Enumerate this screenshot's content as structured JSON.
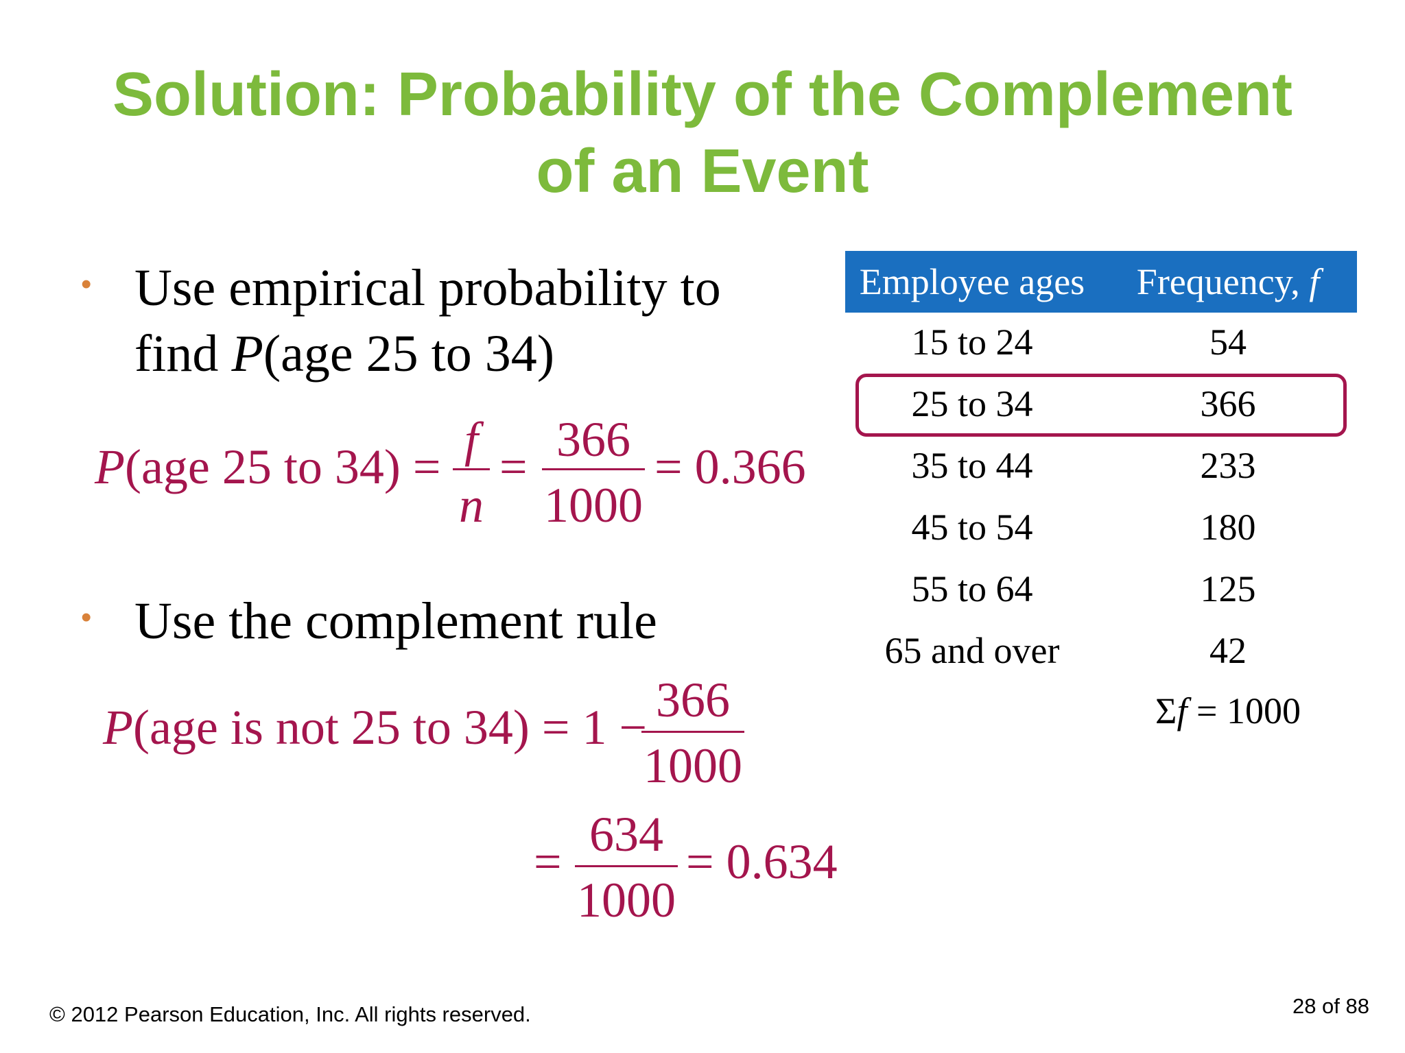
{
  "title": {
    "line1": "Solution: Probability of the Complement",
    "line2": "of an Event"
  },
  "bullets": [
    {
      "line1": "Use empirical probability to",
      "line2_pre": "find ",
      "line2_var": "P",
      "line2_post": "(age 25 to 34)"
    },
    {
      "line1": "Use the complement rule"
    }
  ],
  "equation1": {
    "lhs_var": "P",
    "lhs": "(age 25 to 34) =",
    "frac1_num": "f",
    "frac1_den": "n",
    "eq_sign": "=",
    "frac2_num": "366",
    "frac2_den": "1000",
    "result": "= 0.366"
  },
  "equation2": {
    "lhs_var": "P",
    "lhs": "(age is not 25 to 34) = 1 −",
    "frac_num": "366",
    "frac_den": "1000",
    "line2_eq": "=",
    "frac2_num": "634",
    "frac2_den": "1000",
    "result": "= 0.634"
  },
  "table": {
    "headers": [
      "Employee ages",
      "Frequency, "
    ],
    "header_f": "f",
    "rows": [
      [
        "15 to 24",
        "54"
      ],
      [
        "25 to 34",
        "366"
      ],
      [
        "35 to 44",
        "233"
      ],
      [
        "45 to 54",
        "180"
      ],
      [
        "55 to 64",
        "125"
      ],
      [
        "65 and over",
        "42"
      ]
    ],
    "sum_sigma": "Σ",
    "sum_f": "f",
    "sum_rest": " = 1000",
    "highlighted_row": "25 to 34"
  },
  "footer": {
    "copyright": "© 2012 Pearson Education, Inc. All rights reserved.",
    "page": "28 of 88"
  },
  "colors": {
    "title": "#7dba3c",
    "math": "#a4154d",
    "table_header": "#1a6fc0",
    "bullet": "#d9823a"
  }
}
